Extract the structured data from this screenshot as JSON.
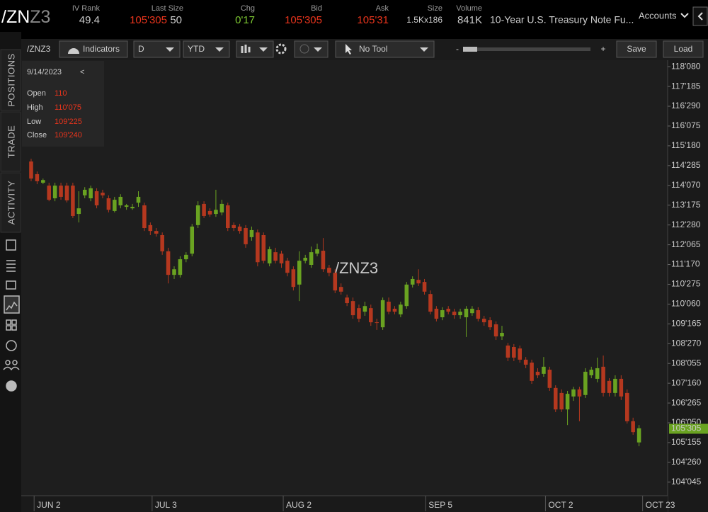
{
  "header": {
    "symbol_root": "/ZN",
    "symbol_suffix": "Z3",
    "stats": [
      {
        "label": "IV Rank",
        "value": "49.4"
      },
      {
        "label": "Last Size",
        "value": "105'305",
        "extra": "50"
      },
      {
        "label": "Chg",
        "value": "0'17"
      },
      {
        "label": "Bid",
        "value": "105'305"
      },
      {
        "label": "Ask",
        "value": "105'31"
      },
      {
        "label": "Size",
        "value": "1.5Kx186"
      },
      {
        "label": "Volume",
        "value": "841K"
      }
    ],
    "description": "10-Year U.S. Treasury Note Fu...",
    "accounts": "Accounts"
  },
  "toolbar": {
    "symbol": "/ZNZ3",
    "indicators": "Indicators",
    "aggregation": "D",
    "range": "YTD",
    "tool": "No Tool",
    "zoom_out": "-",
    "zoom_in": "+",
    "save": "Save",
    "load": "Load"
  },
  "sidebar": {
    "tabs": [
      "POSITIONS",
      "TRADE",
      "ACTIVITY"
    ]
  },
  "info_box": {
    "date": "9/14/2023",
    "collapse": "<",
    "rows": [
      {
        "label": "Open",
        "value": "110"
      },
      {
        "label": "High",
        "value": "110'075"
      },
      {
        "label": "Low",
        "value": "109'225"
      },
      {
        "label": "Close",
        "value": "109'240"
      }
    ]
  },
  "chart_data": {
    "type": "candlestick",
    "watermark": "/ZNZ3",
    "up_color": "#6aa321",
    "down_color": "#b5381f",
    "open": [
      115.03,
      114.6,
      114.31,
      114.21,
      113.78,
      114.21,
      114.21,
      114.21,
      113.25,
      113.88,
      113.78,
      114.02,
      113.97,
      113.78,
      113.35,
      113.54,
      113.49,
      113.44,
      113.63,
      113.54,
      112.87,
      112.67,
      112.53,
      111.98,
      111.18,
      111.18,
      111.71,
      111.9,
      112.87,
      113.59,
      113.35,
      113.25,
      113.3,
      113.54,
      112.87,
      112.82,
      112.77,
      112.46,
      112.62,
      112.53,
      111.57,
      111.95,
      111.9,
      111.66,
      111.37,
      110.85,
      111.66,
      111.52,
      111.9,
      112.0,
      111.42,
      111.25,
      110.77,
      110.41,
      110.29,
      110.05,
      109.93,
      110.05,
      109.57,
      109.4,
      110.27,
      110.03,
      109.84,
      110.12,
      110.85,
      111.01,
      110.94,
      110.53,
      110.03,
      109.74,
      110.03,
      109.93,
      109.81,
      109.74,
      109.88,
      109.98,
      109.69,
      109.64,
      109.5,
      109.09,
      108.78,
      108.73,
      108.68,
      108.3,
      108.2,
      107.89,
      107.82,
      107.96,
      107.34,
      107.17,
      106.61,
      107.05,
      107.29,
      107.1,
      107.77,
      107.65,
      108.06,
      107.58,
      107.17,
      107.65,
      107.17,
      106.21,
      105.49
    ],
    "high": [
      115.12,
      114.69,
      114.45,
      114.31,
      114.31,
      114.31,
      114.31,
      114.31,
      114.02,
      114.16,
      114.21,
      114.12,
      114.07,
      113.88,
      113.83,
      113.92,
      113.59,
      113.59,
      114.02,
      113.63,
      112.96,
      112.77,
      112.62,
      112.1,
      111.47,
      111.81,
      111.95,
      112.91,
      113.68,
      113.68,
      113.44,
      114.07,
      113.73,
      113.63,
      112.96,
      112.91,
      112.87,
      112.82,
      112.72,
      112.62,
      112.14,
      112.1,
      112.0,
      111.76,
      111.47,
      111.98,
      111.86,
      112.14,
      112.24,
      112.43,
      111.52,
      111.37,
      110.89,
      110.51,
      110.41,
      110.17,
      110.27,
      110.17,
      109.69,
      110.41,
      110.41,
      110.12,
      110.27,
      110.94,
      111.13,
      111.37,
      111.04,
      110.65,
      110.12,
      110.08,
      110.12,
      110.03,
      110.03,
      110.12,
      110.12,
      110.08,
      109.79,
      109.74,
      109.6,
      109.45,
      108.87,
      108.83,
      108.78,
      108.39,
      108.3,
      108.01,
      108.39,
      108.06,
      107.43,
      107.29,
      107.24,
      107.38,
      107.38,
      108.01,
      108.06,
      108.37,
      108.44,
      107.67,
      107.77,
      107.77,
      107.29,
      106.33,
      106.08
    ],
    "low": [
      114.36,
      114.26,
      114.26,
      113.68,
      113.68,
      113.73,
      113.64,
      113.11,
      112.96,
      113.78,
      113.68,
      113.44,
      113.78,
      113.3,
      113.3,
      113.44,
      113.39,
      113.39,
      113.49,
      112.67,
      112.53,
      112.48,
      111.86,
      110.89,
      111.04,
      111.09,
      111.61,
      111.81,
      112.77,
      113.11,
      113.15,
      113.15,
      113.2,
      112.67,
      112.67,
      112.58,
      112.1,
      112.34,
      111.47,
      111.57,
      111.47,
      111.57,
      111.42,
      111.13,
      110.65,
      110.29,
      111.57,
      111.42,
      111.81,
      111.28,
      111.13,
      110.56,
      110.51,
      110.12,
      109.69,
      109.57,
      109.79,
      109.45,
      109.31,
      109.31,
      109.84,
      109.84,
      109.74,
      110.03,
      110.75,
      110.8,
      110.51,
      109.84,
      109.6,
      109.64,
      109.84,
      109.69,
      109.69,
      109.07,
      109.79,
      109.6,
      109.45,
      109.31,
      108.97,
      108.97,
      108.25,
      108.25,
      108.2,
      108.01,
      107.48,
      107.67,
      107.72,
      107.24,
      106.52,
      106.52,
      106.08,
      106.9,
      106.21,
      107.0,
      107.67,
      107.53,
      107.05,
      107.05,
      107.05,
      106.93,
      106.13,
      105.75,
      105.36
    ],
    "close": [
      114.45,
      114.36,
      114.4,
      113.73,
      114.21,
      113.83,
      113.71,
      113.18,
      113.44,
      114.07,
      114.12,
      113.54,
      113.88,
      113.39,
      113.73,
      113.83,
      113.54,
      113.49,
      113.83,
      112.77,
      112.67,
      112.58,
      111.98,
      111.18,
      111.37,
      111.71,
      111.86,
      112.82,
      113.54,
      113.18,
      113.23,
      113.39,
      113.59,
      112.77,
      112.77,
      112.67,
      112.22,
      112.7,
      111.61,
      111.66,
      112.05,
      111.66,
      111.57,
      111.25,
      110.77,
      111.66,
      111.76,
      111.95,
      112.05,
      111.37,
      111.25,
      110.65,
      110.61,
      110.22,
      109.81,
      109.69,
      110.12,
      109.57,
      109.55,
      110.32,
      109.93,
      109.93,
      110.17,
      110.85,
      111.04,
      110.89,
      110.61,
      109.93,
      109.69,
      109.98,
      109.93,
      109.81,
      109.93,
      110.03,
      110.03,
      109.69,
      109.57,
      109.4,
      109.09,
      109.21,
      108.37,
      108.37,
      108.3,
      108.13,
      107.58,
      107.77,
      108.06,
      107.34,
      106.61,
      106.61,
      107.14,
      107.29,
      107.05,
      107.89,
      107.96,
      108.01,
      107.17,
      107.17,
      107.65,
      107.05,
      106.21,
      105.84,
      105.97
    ],
    "ylim": [
      103.68,
      118.47
    ],
    "yticks": [
      {
        "value": 118.25,
        "label": "118'080"
      },
      {
        "value": 117.578125,
        "label": "117'185"
      },
      {
        "value": 116.90625,
        "label": "116'290"
      },
      {
        "value": 116.234375,
        "label": "116'075"
      },
      {
        "value": 115.5625,
        "label": "115'180"
      },
      {
        "value": 114.890625,
        "label": "114'285"
      },
      {
        "value": 114.21875,
        "label": "114'070"
      },
      {
        "value": 113.546875,
        "label": "113'175"
      },
      {
        "value": 112.875,
        "label": "112'280"
      },
      {
        "value": 112.203125,
        "label": "112'065"
      },
      {
        "value": 111.53125,
        "label": "111'170"
      },
      {
        "value": 110.859375,
        "label": "110'275"
      },
      {
        "value": 110.1875,
        "label": "110'060"
      },
      {
        "value": 109.515625,
        "label": "109'165"
      },
      {
        "value": 108.84375,
        "label": "108'270"
      },
      {
        "value": 108.171875,
        "label": "108'055"
      },
      {
        "value": 107.5,
        "label": "107'160"
      },
      {
        "value": 106.828125,
        "label": "106'265"
      },
      {
        "value": 106.15625,
        "label": "106'050"
      },
      {
        "value": 105.484375,
        "label": "105'155"
      },
      {
        "value": 104.8125,
        "label": "104'260"
      },
      {
        "value": 104.140625,
        "label": "104'045"
      }
    ],
    "xlim": [
      -1.66,
      106.8
    ],
    "xticks": [
      {
        "value": 0.5,
        "label": "JUN 2"
      },
      {
        "value": 20.3,
        "label": "JUL 3"
      },
      {
        "value": 42.3,
        "label": "AUG 2"
      },
      {
        "value": 66.2,
        "label": "SEP 5"
      },
      {
        "value": 86.3,
        "label": "OCT 2"
      },
      {
        "value": 102.6,
        "label": "OCT 23"
      }
    ],
    "last_price": {
      "value": 105.953125,
      "label": "105'305"
    }
  }
}
